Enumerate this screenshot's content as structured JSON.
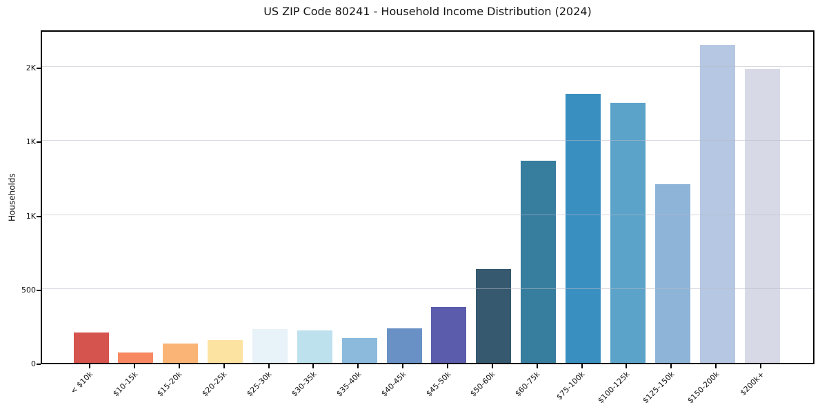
{
  "chart_data": {
    "type": "bar",
    "title": "US ZIP Code 80241 - Household Income Distribution (2024)",
    "xlabel": "",
    "ylabel": "Households",
    "categories": [
      "< $10k",
      "$10-15k",
      "$15-20k",
      "$20-25k",
      "$25-30k",
      "$30-35k",
      "$35-40k",
      "$40-45k",
      "$45-50k",
      "$50-60k",
      "$60-75k",
      "$75-100k",
      "$100-125k",
      "$125-150k",
      "$150-200k",
      "$200k+"
    ],
    "values": [
      205,
      70,
      130,
      155,
      230,
      220,
      170,
      235,
      380,
      635,
      1365,
      1820,
      1760,
      1210,
      2150,
      1985
    ],
    "bar_colors": [
      "#d5544e",
      "#f78862",
      "#fab475",
      "#fde3a1",
      "#e7f3f8",
      "#bee1ee",
      "#8bbadd",
      "#6991c5",
      "#5b5dac",
      "#36596f",
      "#377d9e",
      "#3a8fc1",
      "#5ba3c9",
      "#8eb4d8",
      "#b5c7e2",
      "#d7d9e6"
    ],
    "ylim": [
      0,
      2257
    ],
    "yticks": [
      {
        "value": 0,
        "label": "0"
      },
      {
        "value": 500,
        "label": "500"
      },
      {
        "value": 1000,
        "label": "1K"
      },
      {
        "value": 1500,
        "label": "1K"
      },
      {
        "value": 2000,
        "label": "2K"
      }
    ],
    "grid": "horizontal, drawn above bars",
    "legend_position": "none",
    "colors": {
      "background": "#ffffff",
      "spine": "#000000",
      "gridline": "#e1e1e8",
      "text": "#131313"
    }
  }
}
